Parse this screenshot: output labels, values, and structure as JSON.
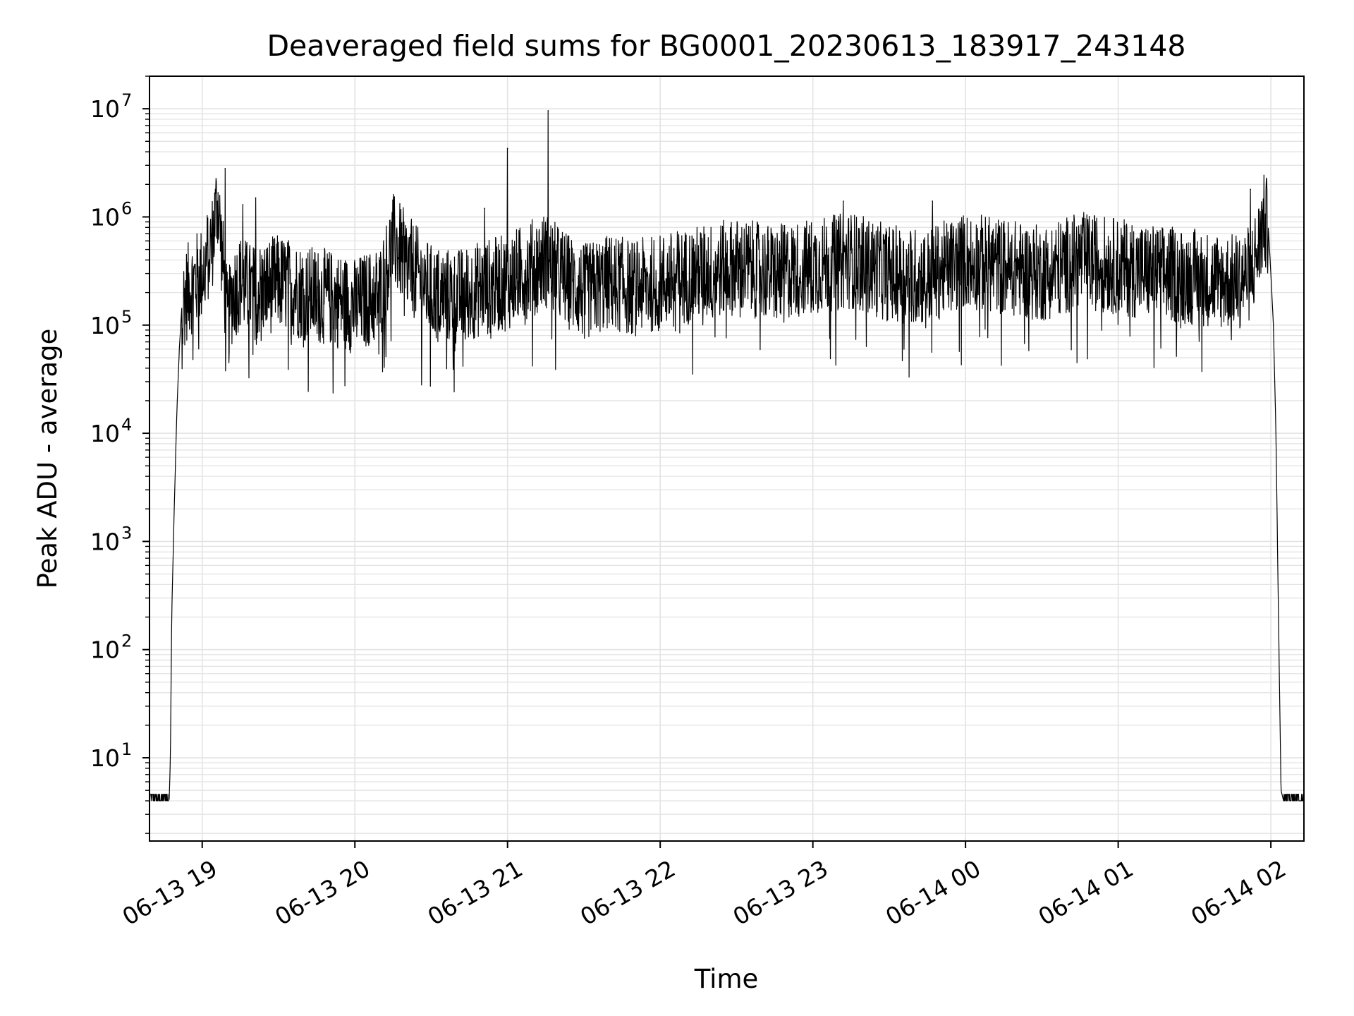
{
  "chart_data": {
    "type": "line",
    "title": "Deaveraged field sums for BG0001_20230613_183917_243148",
    "xlabel": "Time",
    "ylabel": "Peak ADU - average",
    "yscale": "log",
    "ylim": [
      1.7,
      20000000
    ],
    "xlim": [
      "2023-06-13 18:39:17",
      "2023-06-14 02:13:00"
    ],
    "grid": true,
    "x_ticks": [
      "06-13 19",
      "06-13 20",
      "06-13 21",
      "06-13 22",
      "06-13 23",
      "06-14 00",
      "06-14 01",
      "06-14 02"
    ],
    "y_ticks": [
      {
        "base": "10",
        "exp": "1"
      },
      {
        "base": "10",
        "exp": "2"
      },
      {
        "base": "10",
        "exp": "3"
      },
      {
        "base": "10",
        "exp": "4"
      },
      {
        "base": "10",
        "exp": "5"
      },
      {
        "base": "10",
        "exp": "6"
      },
      {
        "base": "10",
        "exp": "7"
      }
    ],
    "line_color": "#000000",
    "grid_color": "#e3e3e3",
    "series": [
      {
        "x": [
          "2023-06-13 18:39:17",
          "2023-06-13 18:47:00",
          "2023-06-13 18:47:30",
          "2023-06-13 18:48:00",
          "2023-06-13 18:49:00",
          "2023-06-13 18:50:00",
          "2023-06-13 18:51:00",
          "2023-06-13 18:52:00",
          "2023-06-13 18:54:00",
          "2023-06-13 18:57:00",
          "2023-06-13 19:00:00",
          "2023-06-13 19:04:00",
          "2023-06-13 19:06:00",
          "2023-06-13 19:08:00",
          "2023-06-13 19:10:00",
          "2023-06-13 19:12:00",
          "2023-06-13 19:15:00",
          "2023-06-13 19:20:00",
          "2023-06-13 19:30:00",
          "2023-06-13 19:40:00",
          "2023-06-13 19:50:00",
          "2023-06-13 20:00:00",
          "2023-06-13 20:10:00",
          "2023-06-13 20:15:00",
          "2023-06-13 20:20:00",
          "2023-06-13 20:30:00",
          "2023-06-13 20:40:00",
          "2023-06-13 20:50:00",
          "2023-06-13 21:00:00",
          "2023-06-13 21:10:00",
          "2023-06-13 21:15:00",
          "2023-06-13 21:20:00",
          "2023-06-13 21:30:00",
          "2023-06-13 21:40:00",
          "2023-06-13 21:50:00",
          "2023-06-13 22:00:00",
          "2023-06-13 22:15:00",
          "2023-06-13 22:30:00",
          "2023-06-13 22:45:00",
          "2023-06-13 23:00:00",
          "2023-06-13 23:15:00",
          "2023-06-13 23:30:00",
          "2023-06-13 23:45:00",
          "2023-06-14 00:00:00",
          "2023-06-14 00:15:00",
          "2023-06-14 00:30:00",
          "2023-06-14 00:45:00",
          "2023-06-14 01:00:00",
          "2023-06-14 01:15:00",
          "2023-06-14 01:30:00",
          "2023-06-14 01:45:00",
          "2023-06-14 01:52:00",
          "2023-06-14 01:55:00",
          "2023-06-14 01:57:00",
          "2023-06-14 01:59:00",
          "2023-06-14 02:00:00",
          "2023-06-14 02:01:00",
          "2023-06-14 02:02:00",
          "2023-06-14 02:03:00",
          "2023-06-14 02:04:00",
          "2023-06-14 02:05:00",
          "2023-06-14 02:13:00"
        ],
        "y": [
          4,
          4,
          10,
          200,
          2000,
          15000,
          60000,
          150000,
          200000,
          250000,
          300000,
          600000,
          1500000,
          400000,
          100000,
          200000,
          250000,
          200000,
          250000,
          200000,
          180000,
          150000,
          200000,
          600000,
          400000,
          200000,
          180000,
          220000,
          250000,
          350000,
          400000,
          300000,
          200000,
          250000,
          220000,
          250000,
          300000,
          350000,
          300000,
          350000,
          400000,
          300000,
          280000,
          400000,
          350000,
          300000,
          400000,
          350000,
          300000,
          280000,
          250000,
          300000,
          500000,
          900000,
          800000,
          300000,
          100000,
          10000,
          200,
          5,
          4,
          4
        ],
        "spikes": [
          {
            "x": "2023-06-13 19:09:00",
            "y": 2800000
          },
          {
            "x": "2023-06-13 19:16:00",
            "y": 1300000
          },
          {
            "x": "2023-06-13 19:21:00",
            "y": 1500000
          },
          {
            "x": "2023-06-13 20:51:00",
            "y": 1200000
          },
          {
            "x": "2023-06-13 21:00:00",
            "y": 4300000
          },
          {
            "x": "2023-06-13 21:16:00",
            "y": 9600000
          },
          {
            "x": "2023-06-13 23:12:00",
            "y": 1400000
          },
          {
            "x": "2023-06-13 23:47:00",
            "y": 1400000
          },
          {
            "x": "2023-06-14 01:52:00",
            "y": 1800000
          }
        ]
      }
    ]
  }
}
